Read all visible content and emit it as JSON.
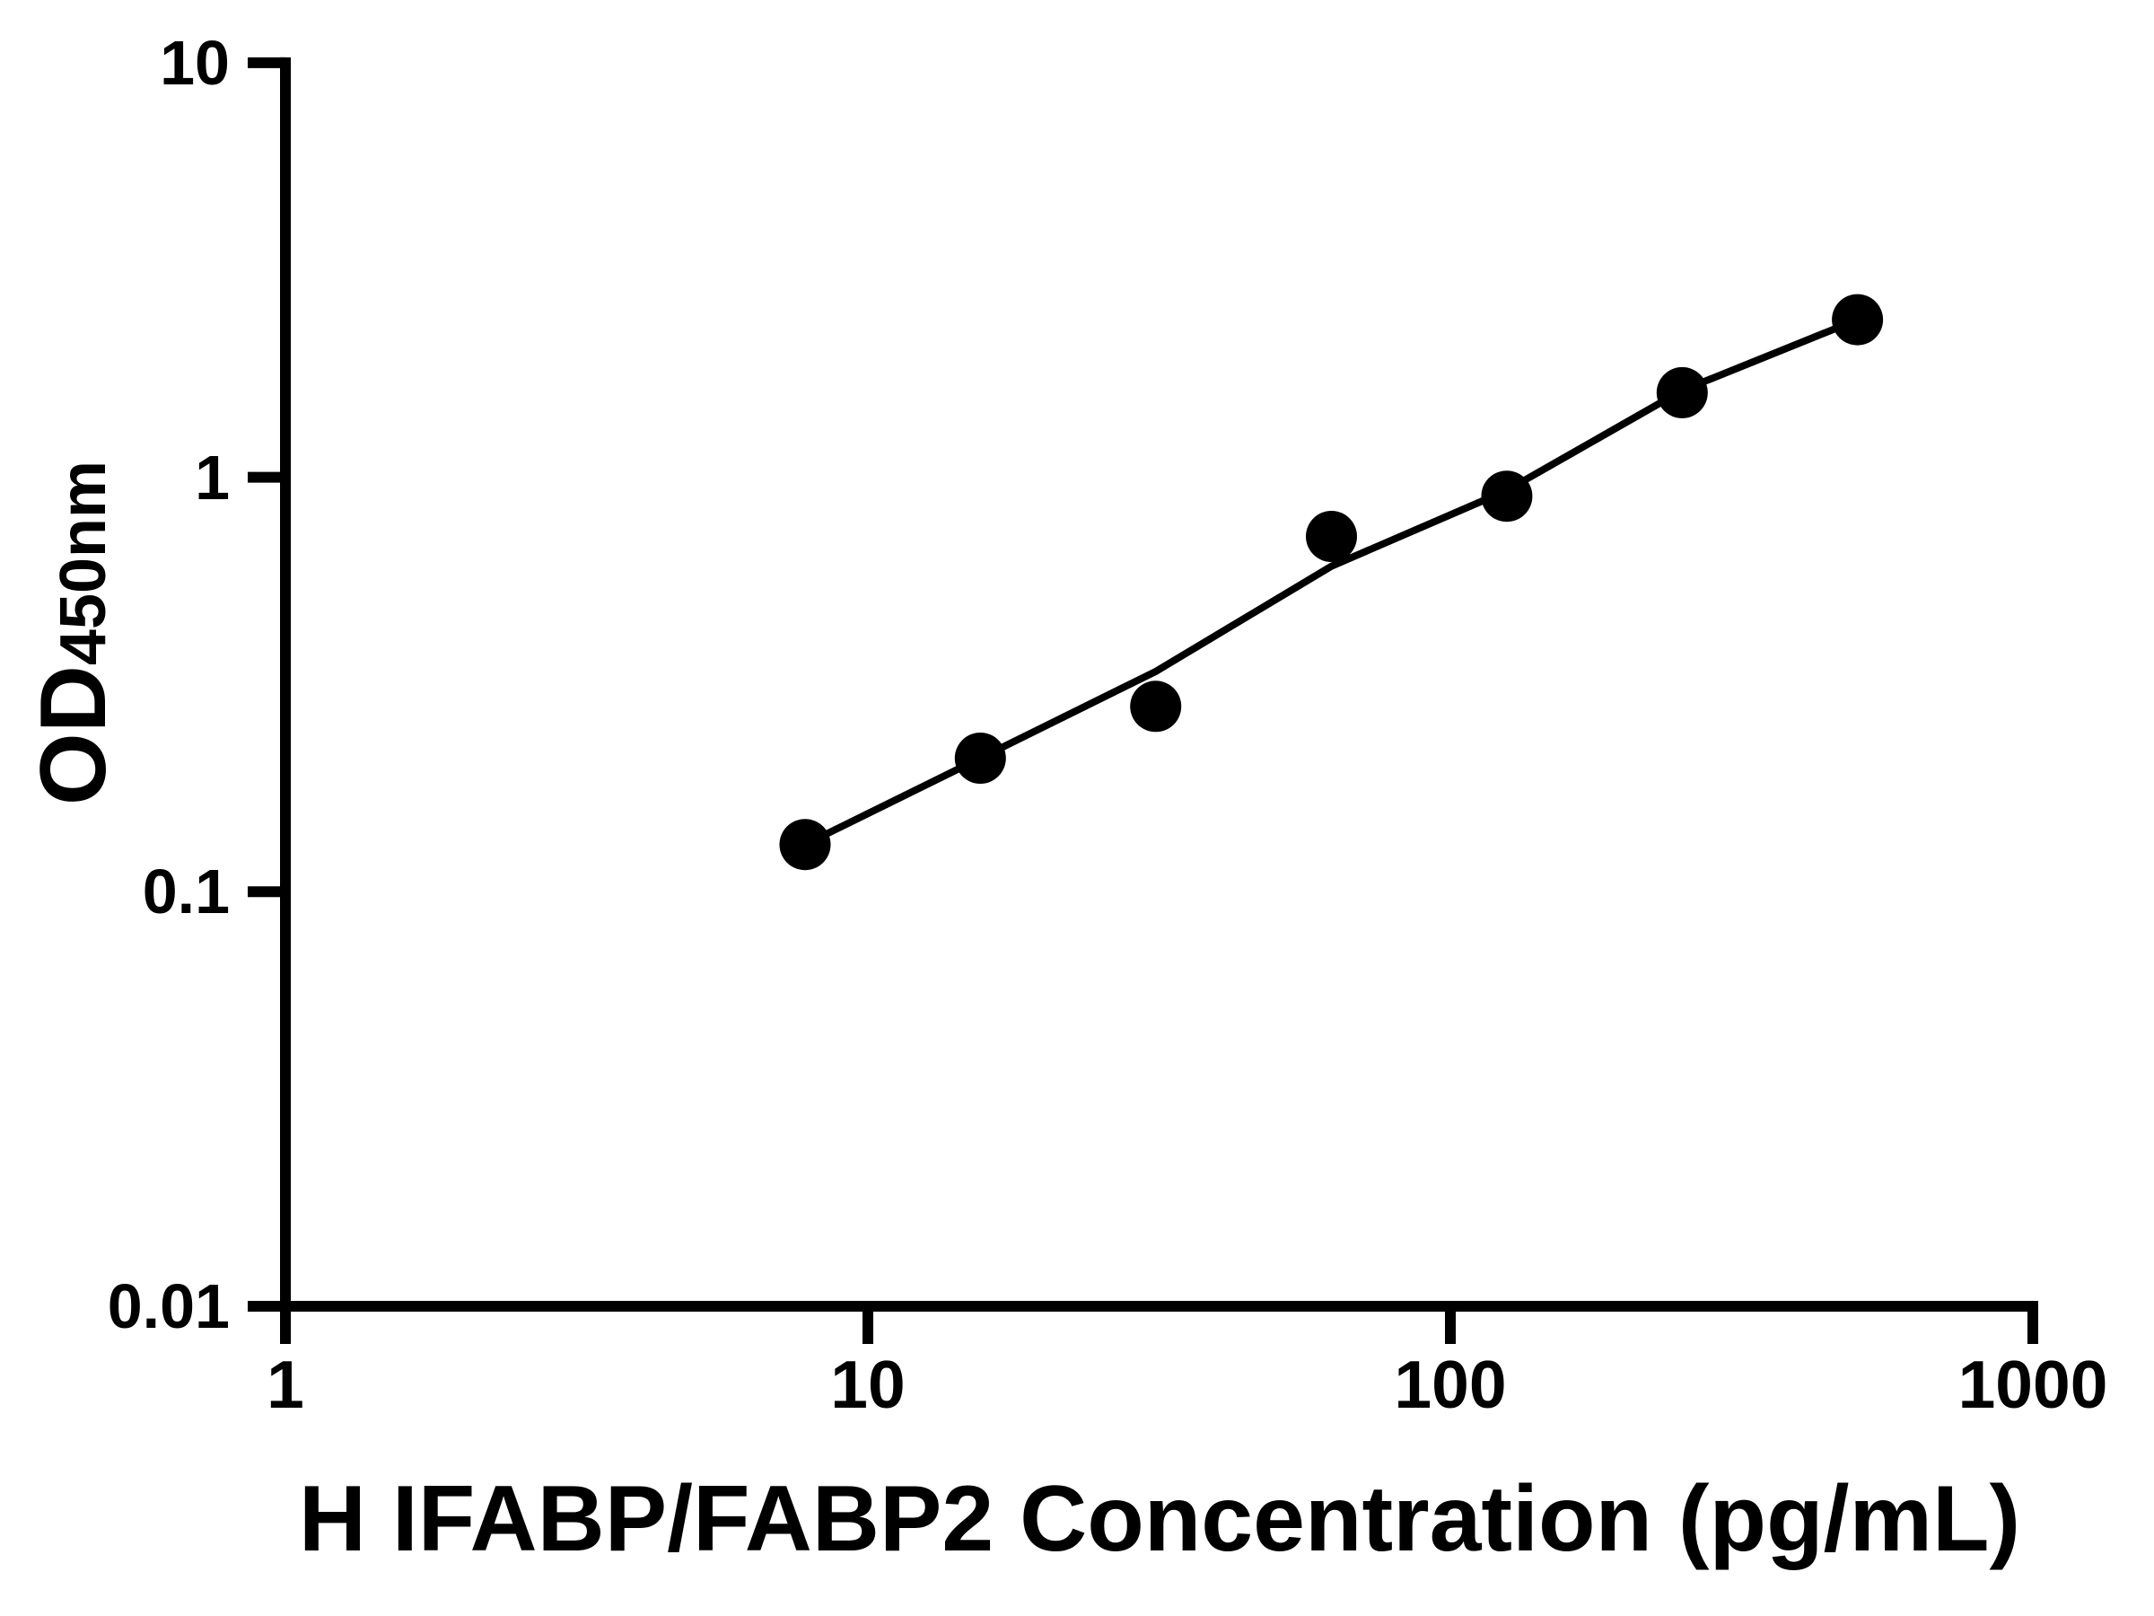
{
  "figure": {
    "background": "#ffffff",
    "ink": "#000000"
  },
  "chart_data": {
    "type": "scatter",
    "title": "",
    "xlabel": "H IFABP/FABP2 Concentration (pg/mL)",
    "ylabel": "OD",
    "ylabel_subscript": "450nm",
    "x_scale": "log",
    "y_scale": "log",
    "xlim": [
      1,
      1000
    ],
    "ylim": [
      0.01,
      10
    ],
    "grid": false,
    "legend": false,
    "x_ticks": {
      "values": [
        1,
        10,
        100,
        1000
      ],
      "labels": [
        "1",
        "10",
        "100",
        "1000"
      ]
    },
    "y_ticks": {
      "values": [
        10,
        1,
        0.1,
        0.01
      ],
      "labels": [
        "10",
        "1",
        "0.1",
        "0.01"
      ]
    },
    "series": [
      {
        "name": "standard curve points",
        "marker": "circle",
        "color": "#000000",
        "points": [
          [
            7.8,
            0.13
          ],
          [
            15.6,
            0.21
          ],
          [
            31.2,
            0.28
          ],
          [
            62.5,
            0.72
          ],
          [
            125,
            0.9
          ],
          [
            250,
            1.6
          ],
          [
            500,
            2.4
          ]
        ]
      }
    ],
    "fit_line": {
      "name": "fitted curve",
      "color": "#000000",
      "points": [
        [
          7.8,
          0.13
        ],
        [
          15.6,
          0.21
        ],
        [
          31.2,
          0.34
        ],
        [
          62.5,
          0.61
        ],
        [
          125,
          0.93
        ],
        [
          250,
          1.62
        ],
        [
          500,
          2.4
        ]
      ]
    }
  }
}
